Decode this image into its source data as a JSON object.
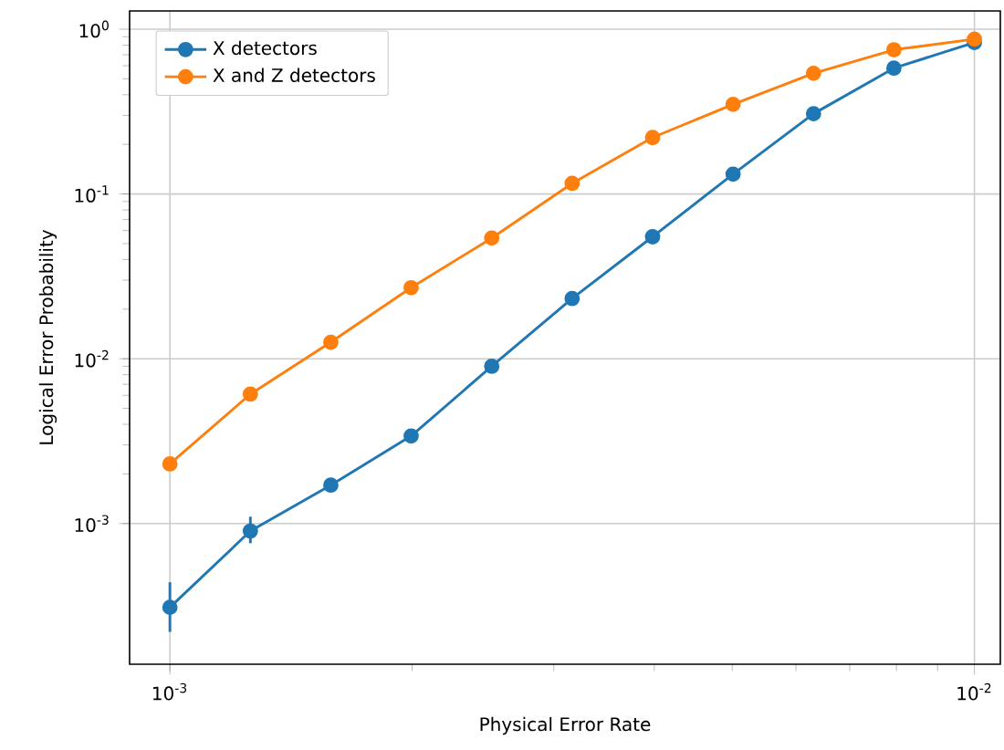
{
  "chart_data": {
    "type": "line",
    "xlabel": "Physical Error Rate",
    "ylabel": "Logical Error Probability",
    "x": [
      0.001,
      0.001259,
      0.001585,
      0.001995,
      0.002512,
      0.003162,
      0.003981,
      0.005012,
      0.00631,
      0.007943,
      0.01
    ],
    "series": [
      {
        "name": "X detectors",
        "color": "#1f77b4",
        "values": [
          0.00031,
          0.0009,
          0.00171,
          0.0034,
          0.009,
          0.0232,
          0.055,
          0.132,
          0.307,
          0.58,
          0.83
        ],
        "errors": [
          [
            0.00022,
            0.00044
          ],
          [
            0.00076,
            0.0011
          ],
          [
            0.00155,
            0.00185
          ],
          null,
          null,
          null,
          null,
          null,
          null,
          null,
          null
        ]
      },
      {
        "name": "X and Z detectors",
        "color": "#ff7f0e",
        "values": [
          0.0023,
          0.0061,
          0.0126,
          0.027,
          0.054,
          0.116,
          0.22,
          0.35,
          0.54,
          0.75,
          0.87
        ]
      }
    ],
    "log": "xy",
    "xlim": [
      0.000891,
      0.01077
    ],
    "ylim": [
      0.00014,
      1.29
    ],
    "xticks": [
      {
        "value": 0.001,
        "label": "10$^{-3}$"
      },
      {
        "value": 0.01,
        "label": "10$^{-2}$"
      }
    ],
    "yticks": [
      {
        "value": 0.001,
        "label": "10$^{-3}$"
      },
      {
        "value": 0.01,
        "label": "10$^{-2}$"
      },
      {
        "value": 0.1,
        "label": "10$^{-1}$"
      },
      {
        "value": 1,
        "label": "10$^{0}$"
      }
    ],
    "grid": true,
    "legend": "top left",
    "marker": "circle",
    "line_style": "solid"
  }
}
